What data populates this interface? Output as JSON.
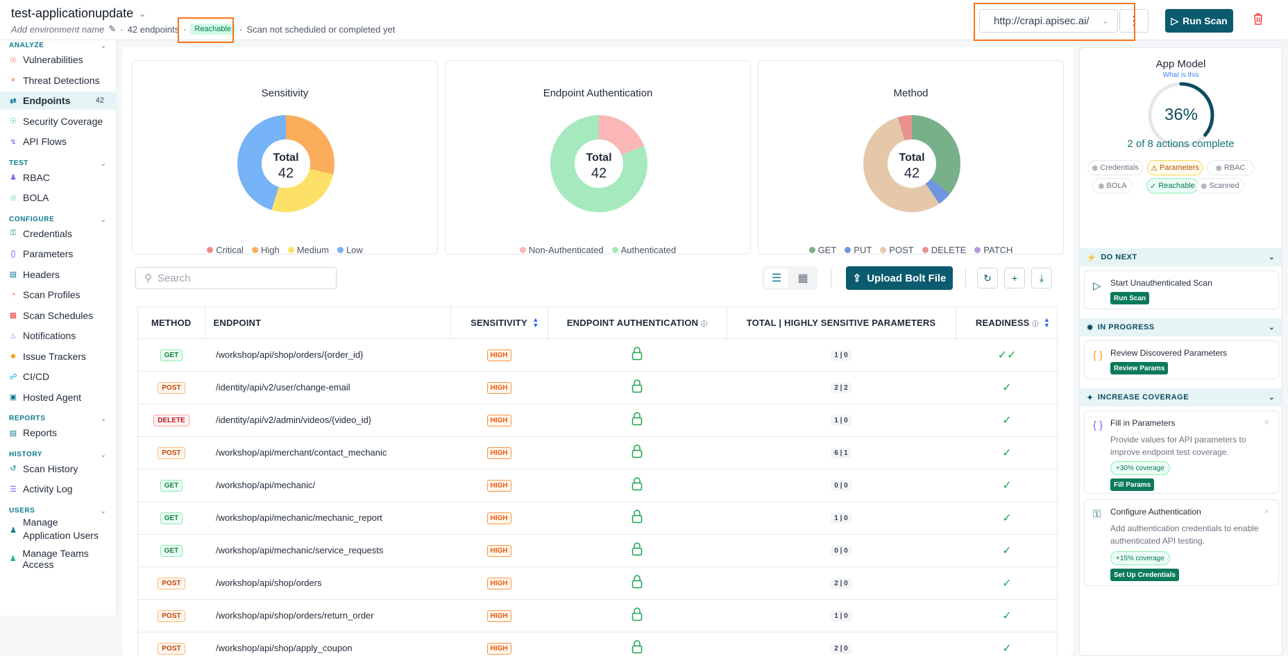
{
  "header": {
    "env_title": "test-applicationupdate",
    "env_sub_placeholder": "Add environment name",
    "endpoints_count": "42 endpoints",
    "reachable_badge": "Reachable",
    "scan_status": "Scan not scheduled or completed yet",
    "url": "http://crapi.apisec.ai/",
    "run_scan_label": "Run Scan"
  },
  "sidebar": {
    "sections": [
      {
        "title": "ANALYZE",
        "items": [
          {
            "label": "Vulnerabilities",
            "icon": "shield-icon",
            "color": "#ef4444"
          },
          {
            "label": "Threat Detections",
            "icon": "alert-icon",
            "color": "#ea580c"
          },
          {
            "label": "Endpoints",
            "icon": "endpoints-icon",
            "color": "#0b7a8e",
            "count": "42",
            "active": true
          },
          {
            "label": "Security Coverage",
            "icon": "shield-check-icon",
            "color": "#10b981"
          },
          {
            "label": "API Flows",
            "icon": "flow-icon",
            "color": "#8b5cf6"
          }
        ]
      },
      {
        "title": "TEST",
        "items": [
          {
            "label": "RBAC",
            "icon": "users-icon",
            "color": "#8b5cf6"
          },
          {
            "label": "BOLA",
            "icon": "shield-check-icon",
            "color": "#10b981"
          }
        ]
      },
      {
        "title": "CONFIGURE",
        "items": [
          {
            "label": "Credentials",
            "icon": "key-icon",
            "color": "#0b7a8e"
          },
          {
            "label": "Parameters",
            "icon": "braces-icon",
            "color": "#8b5cf6"
          },
          {
            "label": "Headers",
            "icon": "table-icon",
            "color": "#0b7a8e"
          },
          {
            "label": "Scan Profiles",
            "icon": "gauge-icon",
            "color": "#ea580c"
          },
          {
            "label": "Scan Schedules",
            "icon": "calendar-icon",
            "color": "#ef4444"
          },
          {
            "label": "Notifications",
            "icon": "bell-icon",
            "color": "#3b82f6"
          },
          {
            "label": "Issue Trackers",
            "icon": "bug-icon",
            "color": "#f59e0b"
          },
          {
            "label": "CI/CD",
            "icon": "git-icon",
            "color": "#0ea5e9"
          },
          {
            "label": "Hosted Agent",
            "icon": "agent-icon",
            "color": "#0b7a8e"
          }
        ]
      },
      {
        "title": "REPORTS",
        "items": [
          {
            "label": "Reports",
            "icon": "document-icon",
            "color": "#0b7a8e"
          }
        ]
      },
      {
        "title": "HISTORY",
        "items": [
          {
            "label": "Scan History",
            "icon": "history-icon",
            "color": "#0b7a8e"
          },
          {
            "label": "Activity Log",
            "icon": "log-icon",
            "color": "#8b5cf6"
          }
        ]
      },
      {
        "title": "USERS",
        "items": [
          {
            "label": "Manage Application Users",
            "icon": "users-icon",
            "color": "#0b7a8e"
          },
          {
            "label": "Manage Teams Access",
            "icon": "team-icon",
            "color": "#10b981"
          }
        ]
      }
    ]
  },
  "charts": {
    "sensitivity": {
      "title": "Sensitivity",
      "total_label": "Total",
      "total": "42",
      "legend": [
        {
          "label": "Critical",
          "color": "#ef8a8a"
        },
        {
          "label": "High",
          "color": "#fbad5c"
        },
        {
          "label": "Medium",
          "color": "#fde068"
        },
        {
          "label": "Low",
          "color": "#76b3f7"
        }
      ]
    },
    "auth": {
      "title": "Endpoint Authentication",
      "total_label": "Total",
      "total": "42",
      "legend": [
        {
          "label": "Non-Authenticated",
          "color": "#fbb6b6"
        },
        {
          "label": "Authenticated",
          "color": "#a6e9bf"
        }
      ]
    },
    "method": {
      "title": "Method",
      "total_label": "Total",
      "total": "42",
      "legend": [
        {
          "label": "GET",
          "color": "#78b08a"
        },
        {
          "label": "PUT",
          "color": "#6f94e0"
        },
        {
          "label": "POST",
          "color": "#e4c8a8"
        },
        {
          "label": "DELETE",
          "color": "#e8918c"
        },
        {
          "label": "PATCH",
          "color": "#b799e0"
        }
      ]
    }
  },
  "chart_data": [
    {
      "type": "pie",
      "title": "Sensitivity",
      "categories": [
        "Critical",
        "High",
        "Medium",
        "Low"
      ],
      "values": [
        0,
        12,
        11,
        19
      ]
    },
    {
      "type": "pie",
      "title": "Endpoint Authentication",
      "categories": [
        "Non-Authenticated",
        "Authenticated"
      ],
      "values": [
        8,
        34
      ]
    },
    {
      "type": "pie",
      "title": "Method",
      "categories": [
        "GET",
        "PUT",
        "POST",
        "DELETE",
        "PATCH"
      ],
      "values": [
        15,
        2,
        23,
        2,
        0
      ]
    }
  ],
  "toolbar": {
    "search_placeholder": "Search",
    "upload_label": "Upload Bolt File"
  },
  "table": {
    "headers": [
      "METHOD",
      "ENDPOINT",
      "SENSITIVITY",
      "ENDPOINT AUTHENTICATION",
      "TOTAL | HIGHLY SENSITIVE PARAMETERS",
      "READINESS"
    ],
    "rows": [
      {
        "method": "GET",
        "endpoint": "/workshop/api/shop/orders/{order_id}",
        "sensitivity": "HIGH",
        "params": "1 | 0"
      },
      {
        "method": "POST",
        "endpoint": "/identity/api/v2/user/change-email",
        "sensitivity": "HIGH",
        "params": "2 | 2"
      },
      {
        "method": "DELETE",
        "endpoint": "/identity/api/v2/admin/videos/{video_id}",
        "sensitivity": "HIGH",
        "params": "1 | 0"
      },
      {
        "method": "POST",
        "endpoint": "/workshop/api/merchant/contact_mechanic",
        "sensitivity": "HIGH",
        "params": "6 | 1"
      },
      {
        "method": "GET",
        "endpoint": "/workshop/api/mechanic/",
        "sensitivity": "HIGH",
        "params": "0 | 0"
      },
      {
        "method": "GET",
        "endpoint": "/workshop/api/mechanic/mechanic_report",
        "sensitivity": "HIGH",
        "params": "1 | 0"
      },
      {
        "method": "GET",
        "endpoint": "/workshop/api/mechanic/service_requests",
        "sensitivity": "HIGH",
        "params": "0 | 0"
      },
      {
        "method": "POST",
        "endpoint": "/workshop/api/shop/orders",
        "sensitivity": "HIGH",
        "params": "2 | 0"
      },
      {
        "method": "POST",
        "endpoint": "/workshop/api/shop/orders/return_order",
        "sensitivity": "HIGH",
        "params": "1 | 0"
      },
      {
        "method": "POST",
        "endpoint": "/workshop/api/shop/apply_coupon",
        "sensitivity": "HIGH",
        "params": "2 | 0"
      }
    ]
  },
  "app_model": {
    "title": "App Model",
    "what_is_this": "What is this",
    "percent_value": 36,
    "percent": "36%",
    "actions_complete": "2 of 8 actions complete",
    "chips": [
      {
        "label": "Credentials",
        "state": "todo"
      },
      {
        "label": "Parameters",
        "state": "warn"
      },
      {
        "label": "RBAC",
        "state": "todo"
      },
      {
        "label": "BOLA",
        "state": "todo"
      },
      {
        "label": "Reachable",
        "state": "ok"
      },
      {
        "label": "Scanned",
        "state": "todo"
      }
    ],
    "do_next": {
      "title": "DO NEXT",
      "card_title": "Start Unauthenticated Scan",
      "button": "Run Scan"
    },
    "in_progress": {
      "title": "IN PROGRESS",
      "card_title": "Review Discovered Parameters",
      "button": "Review Params"
    },
    "increase": {
      "title": "INCREASE COVERAGE",
      "cards": [
        {
          "title": "Fill in Parameters",
          "desc": "Provide values for API parameters to improve endpoint test coverage.",
          "coverage": "+30% coverage",
          "button": "Fill Params"
        },
        {
          "title": "Configure Authentication",
          "desc": "Add authentication credentials to enable authenticated API testing.",
          "coverage": "+15% coverage",
          "button": "Set Up Credentials"
        }
      ]
    }
  }
}
